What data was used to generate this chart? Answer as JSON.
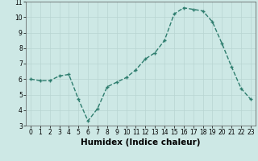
{
  "x": [
    0,
    1,
    2,
    3,
    4,
    5,
    6,
    7,
    8,
    9,
    10,
    11,
    12,
    13,
    14,
    15,
    16,
    17,
    18,
    19,
    20,
    21,
    22,
    23
  ],
  "y": [
    6.0,
    5.9,
    5.9,
    6.2,
    6.3,
    4.7,
    3.3,
    4.1,
    5.5,
    5.8,
    6.1,
    6.6,
    7.3,
    7.7,
    8.5,
    10.2,
    10.6,
    10.5,
    10.4,
    9.7,
    8.3,
    6.8,
    5.4,
    4.7
  ],
  "line_color": "#2e7d6e",
  "marker": "+",
  "marker_size": 3.5,
  "line_width": 1.0,
  "line_style": "--",
  "xlabel": "Humidex (Indice chaleur)",
  "ylabel": "",
  "xlim": [
    -0.5,
    23.5
  ],
  "ylim": [
    3,
    11
  ],
  "xticks": [
    0,
    1,
    2,
    3,
    4,
    5,
    6,
    7,
    8,
    9,
    10,
    11,
    12,
    13,
    14,
    15,
    16,
    17,
    18,
    19,
    20,
    21,
    22,
    23
  ],
  "yticks": [
    3,
    4,
    5,
    6,
    7,
    8,
    9,
    10,
    11
  ],
  "bg_color": "#cde8e5",
  "grid_color": "#b8d5d2",
  "tick_fontsize": 5.5,
  "xlabel_fontsize": 7.5
}
